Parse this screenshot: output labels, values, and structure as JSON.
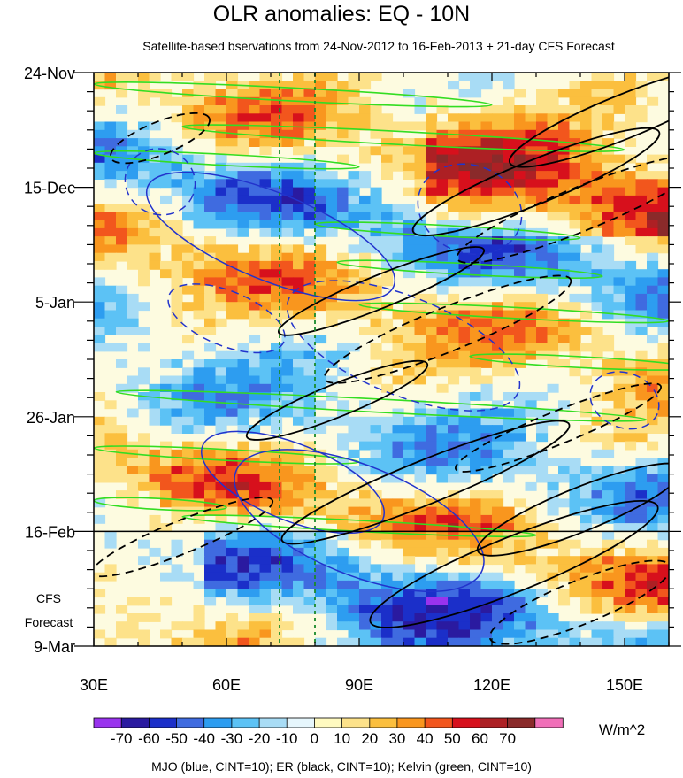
{
  "chart_data": {
    "type": "heatmap",
    "title": "OLR anomalies: EQ - 10N",
    "subtitle": "Satellite-based bservations from 24-Nov-2012 to 16-Feb-2013 + 21-day CFS Forecast",
    "x_ticks": [
      {
        "value": 30,
        "label": "30E"
      },
      {
        "value": 60,
        "label": "60E"
      },
      {
        "value": 90,
        "label": "90E"
      },
      {
        "value": 120,
        "label": "120E"
      },
      {
        "value": 150,
        "label": "150E"
      }
    ],
    "xlim": [
      30,
      160
    ],
    "y_ticks": [
      {
        "day": 0,
        "label": "24-Nov"
      },
      {
        "day": 21,
        "label": "15-Dec"
      },
      {
        "day": 42,
        "label": "5-Jan"
      },
      {
        "day": 63,
        "label": "26-Jan"
      },
      {
        "day": 84,
        "label": "16-Feb"
      },
      {
        "day": 105,
        "label": "9-Mar"
      }
    ],
    "ylim_days": [
      0,
      105
    ],
    "forecast_start_day": 84,
    "forecast_label_1": "CFS",
    "forecast_label_2": "Forecast",
    "reference_longitudes": [
      72,
      80
    ],
    "colorbar": {
      "levels": [
        -70,
        -60,
        -50,
        -40,
        -30,
        -20,
        -10,
        0,
        10,
        20,
        30,
        40,
        50,
        60,
        70
      ],
      "labels": [
        "-70",
        "-60",
        "-50",
        "-40",
        "-30",
        "-20",
        "-10",
        "0",
        "10",
        "20",
        "30",
        "40",
        "50",
        "60",
        "70"
      ],
      "colors": [
        "#9933ee",
        "#2a1aa0",
        "#1b2fc9",
        "#3f6be0",
        "#2d9df0",
        "#5cc2f5",
        "#a8dcf5",
        "#e6f6fc",
        "#fffac0",
        "#fde28a",
        "#fbbf3e",
        "#f9961e",
        "#f2561d",
        "#d7101c",
        "#ad2024",
        "#8a2a2a",
        "#f06fb8"
      ],
      "units": "W/m^2"
    },
    "footnote": "MJO (blue, CINT=10); ER (black, CINT=10); Kelvin (green, CINT=10)",
    "overlays": {
      "mjo": [
        {
          "lon": 45,
          "day": 20,
          "rlon": 8,
          "rday": 6,
          "dashed": true
        },
        {
          "lon": 115,
          "day": 25,
          "rlon": 12,
          "rday": 8,
          "dashed": true
        },
        {
          "lon": 70,
          "day": 30,
          "rlon": 30,
          "rday": 8,
          "dashed": false
        },
        {
          "lon": 100,
          "day": 50,
          "rlon": 28,
          "rday": 9,
          "dashed": true
        },
        {
          "lon": 75,
          "day": 75,
          "rlon": 22,
          "rday": 7,
          "dashed": false
        },
        {
          "lon": 90,
          "day": 82,
          "rlon": 30,
          "rday": 10,
          "dashed": false
        },
        {
          "lon": 60,
          "day": 45,
          "rlon": 14,
          "rday": 5,
          "dashed": true
        },
        {
          "lon": 150,
          "day": 60,
          "rlon": 8,
          "rday": 5,
          "dashed": true
        }
      ],
      "er": [
        {
          "lon": 150,
          "day": 8,
          "rlon": 28,
          "rday": 4,
          "dashed": false
        },
        {
          "lon": 130,
          "day": 20,
          "rlon": 30,
          "rday": 4,
          "dashed": false
        },
        {
          "lon": 140,
          "day": 25,
          "rlon": 30,
          "rday": 4,
          "dashed": true
        },
        {
          "lon": 95,
          "day": 40,
          "rlon": 25,
          "rday": 3,
          "dashed": false
        },
        {
          "lon": 110,
          "day": 47,
          "rlon": 30,
          "rday": 4,
          "dashed": true
        },
        {
          "lon": 85,
          "day": 60,
          "rlon": 22,
          "rday": 3,
          "dashed": false
        },
        {
          "lon": 105,
          "day": 75,
          "rlon": 35,
          "rday": 4,
          "dashed": false
        },
        {
          "lon": 125,
          "day": 90,
          "rlon": 35,
          "rday": 5,
          "dashed": false
        },
        {
          "lon": 140,
          "day": 80,
          "rlon": 25,
          "rday": 4,
          "dashed": false
        },
        {
          "lon": 50,
          "day": 85,
          "rlon": 22,
          "rday": 3,
          "dashed": true
        },
        {
          "lon": 45,
          "day": 12,
          "rlon": 12,
          "rday": 3,
          "dashed": true
        },
        {
          "lon": 140,
          "day": 97,
          "rlon": 22,
          "rday": 4,
          "dashed": true
        },
        {
          "lon": 135,
          "day": 65,
          "rlon": 25,
          "rday": 3,
          "dashed": true
        }
      ],
      "kelvin": [
        {
          "lon": 75,
          "day": 4,
          "rlon": 45,
          "rday": 1.2
        },
        {
          "lon": 100,
          "day": 12,
          "rlon": 50,
          "rday": 1.2
        },
        {
          "lon": 60,
          "day": 16,
          "rlon": 30,
          "rday": 1
        },
        {
          "lon": 110,
          "day": 29,
          "rlon": 30,
          "rday": 1
        },
        {
          "lon": 115,
          "day": 36,
          "rlon": 30,
          "rday": 1
        },
        {
          "lon": 125,
          "day": 44,
          "rlon": 35,
          "rday": 1
        },
        {
          "lon": 95,
          "day": 61,
          "rlon": 60,
          "rday": 1.2
        },
        {
          "lon": 60,
          "day": 70,
          "rlon": 30,
          "rday": 1
        },
        {
          "lon": 90,
          "day": 83,
          "rlon": 40,
          "rday": 1
        },
        {
          "lon": 45,
          "day": 79,
          "rlon": 15,
          "rday": 1
        },
        {
          "lon": 140,
          "day": 53,
          "rlon": 25,
          "rday": 1
        }
      ]
    }
  }
}
